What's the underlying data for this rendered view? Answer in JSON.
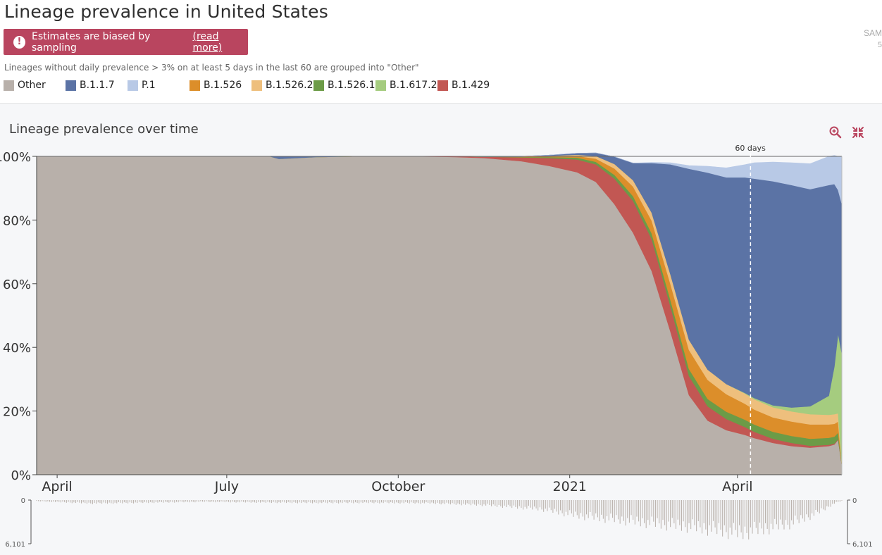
{
  "page": {
    "title": "Lineage prevalence in United States",
    "warning_text": "Estimates are biased by sampling",
    "warning_link": "(read more)",
    "sample_label": "SAM",
    "sample_count": "5",
    "note": "Lineages without daily prevalence > 3% on at least 5 days in the last 60 are grouped into \"Other\""
  },
  "legend": [
    {
      "name": "Other",
      "color": "#b8b0aa"
    },
    {
      "name": "B.1.1.7",
      "color": "#5b73a5"
    },
    {
      "name": "P.1",
      "color": "#b8c9e6"
    },
    {
      "name": "B.1.526",
      "color": "#dc8e2a"
    },
    {
      "name": "B.1.526.2",
      "color": "#eebf7d"
    },
    {
      "name": "B.1.526.1",
      "color": "#6c9b47"
    },
    {
      "name": "B.1.617.2",
      "color": "#a5cc7f"
    },
    {
      "name": "B.1.429",
      "color": "#c25753"
    }
  ],
  "panel": {
    "title": "Lineage prevalence over time",
    "zoom_icon": "zoom-in-icon",
    "collapse_icon": "collapse-icon",
    "accent": "#b9455f"
  },
  "chart_data": {
    "type": "area",
    "stacked": true,
    "title": "Lineage prevalence over time",
    "x_unit": "days since 2020-03-21",
    "x_range": [
      0,
      432
    ],
    "ylim": [
      0,
      100
    ],
    "y_ticks": [
      "0%",
      "20%",
      "40%",
      "60%",
      "80%",
      "100%"
    ],
    "x_ticks": [
      {
        "label": "April",
        "x": 11
      },
      {
        "label": "July",
        "x": 102
      },
      {
        "label": "October",
        "x": 194
      },
      {
        "label": "2021",
        "x": 286
      },
      {
        "label": "April",
        "x": 376
      }
    ],
    "marker": {
      "label": "60 days",
      "x": 383
    },
    "x": [
      0,
      125,
      130,
      150,
      175,
      200,
      225,
      240,
      260,
      275,
      290,
      300,
      310,
      320,
      330,
      340,
      350,
      360,
      370,
      380,
      385,
      395,
      405,
      415,
      425,
      428,
      430,
      432
    ],
    "series": [
      {
        "name": "Other",
        "color": "#b8b0aa",
        "values": [
          100,
          100,
          99.2,
          99.8,
          100,
          100,
          99.8,
          99.5,
          98.5,
          97,
          95,
          92,
          85,
          76,
          64,
          45,
          25,
          17,
          14,
          12.5,
          11.5,
          10,
          9,
          8.5,
          9,
          9.5,
          11,
          3
        ]
      },
      {
        "name": "B.1.429",
        "color": "#c25753",
        "values": [
          0,
          0,
          0,
          0,
          0,
          0,
          0.2,
          0.4,
          1.2,
          2.5,
          4,
          5.5,
          8,
          10,
          10,
          8,
          6,
          4.5,
          3.5,
          2.5,
          2,
          1.3,
          1,
          0.6,
          0.4,
          0.3,
          0.2,
          0
        ]
      },
      {
        "name": "B.1.526.1",
        "color": "#6c9b47",
        "values": [
          0,
          0,
          0,
          0,
          0,
          0,
          0,
          0,
          0.1,
          0.3,
          0.6,
          0.8,
          1.2,
          1.5,
          1.8,
          2,
          2.2,
          2.3,
          2.3,
          2.3,
          2.3,
          2.2,
          2.2,
          2.2,
          2.2,
          2.2,
          2,
          0
        ]
      },
      {
        "name": "B.1.526",
        "color": "#dc8e2a",
        "values": [
          0,
          0,
          0,
          0,
          0,
          0,
          0,
          0,
          0.1,
          0.2,
          0.5,
          1,
          2,
          3,
          4,
          5,
          6,
          6,
          5.5,
          5,
          4.7,
          4.5,
          4.5,
          4.5,
          4.2,
          4,
          3.5,
          0
        ]
      },
      {
        "name": "B.1.526.2",
        "color": "#eebf7d",
        "values": [
          0,
          0,
          0,
          0,
          0,
          0,
          0,
          0,
          0,
          0.2,
          0.4,
          0.8,
          1.4,
          2,
          2.5,
          3,
          3.2,
          3.2,
          3.2,
          3.2,
          3.2,
          3.2,
          3.2,
          3.2,
          3,
          3,
          2.6,
          0
        ]
      },
      {
        "name": "B.1.617.2",
        "color": "#a5cc7f",
        "values": [
          0,
          0,
          0,
          0,
          0,
          0,
          0,
          0,
          0,
          0,
          0,
          0,
          0,
          0,
          0,
          0,
          0,
          0,
          0,
          0.2,
          0.4,
          0.6,
          1.2,
          2.5,
          6,
          15,
          25,
          35
        ]
      },
      {
        "name": "B.1.1.7",
        "color": "#5b73a5",
        "values": [
          0,
          0,
          0.8,
          0.2,
          0,
          0,
          0,
          0.1,
          0.1,
          0.2,
          0.5,
          1,
          2.3,
          5.4,
          15.6,
          34.5,
          53.7,
          61.9,
          64.9,
          67.7,
          68.9,
          70.4,
          69.9,
          68.2,
          66.2,
          57.3,
          45.1,
          47
        ]
      },
      {
        "name": "P.1",
        "color": "#b8c9e6",
        "values": [
          0,
          0,
          0,
          0,
          0,
          0,
          0,
          0,
          0,
          0,
          0,
          0,
          0,
          0,
          0.2,
          0.5,
          1,
          2,
          3,
          4,
          5,
          6,
          7,
          8,
          9,
          9,
          10.6,
          15
        ]
      }
    ],
    "counts_axis": {
      "min_label": "0",
      "max_label": "6,101",
      "max": 6101
    },
    "daily_counts": [
      {
        "x": 0,
        "v": 200
      },
      {
        "x": 30,
        "v": 600
      },
      {
        "x": 60,
        "v": 450
      },
      {
        "x": 90,
        "v": 300
      },
      {
        "x": 120,
        "v": 420
      },
      {
        "x": 150,
        "v": 500
      },
      {
        "x": 180,
        "v": 480
      },
      {
        "x": 210,
        "v": 550
      },
      {
        "x": 240,
        "v": 900
      },
      {
        "x": 270,
        "v": 1600
      },
      {
        "x": 290,
        "v": 2800
      },
      {
        "x": 310,
        "v": 3500
      },
      {
        "x": 330,
        "v": 4200
      },
      {
        "x": 350,
        "v": 4800
      },
      {
        "x": 365,
        "v": 5400
      },
      {
        "x": 378,
        "v": 6000
      },
      {
        "x": 390,
        "v": 5200
      },
      {
        "x": 405,
        "v": 4200
      },
      {
        "x": 418,
        "v": 2500
      },
      {
        "x": 428,
        "v": 600
      },
      {
        "x": 432,
        "v": 150
      }
    ]
  }
}
